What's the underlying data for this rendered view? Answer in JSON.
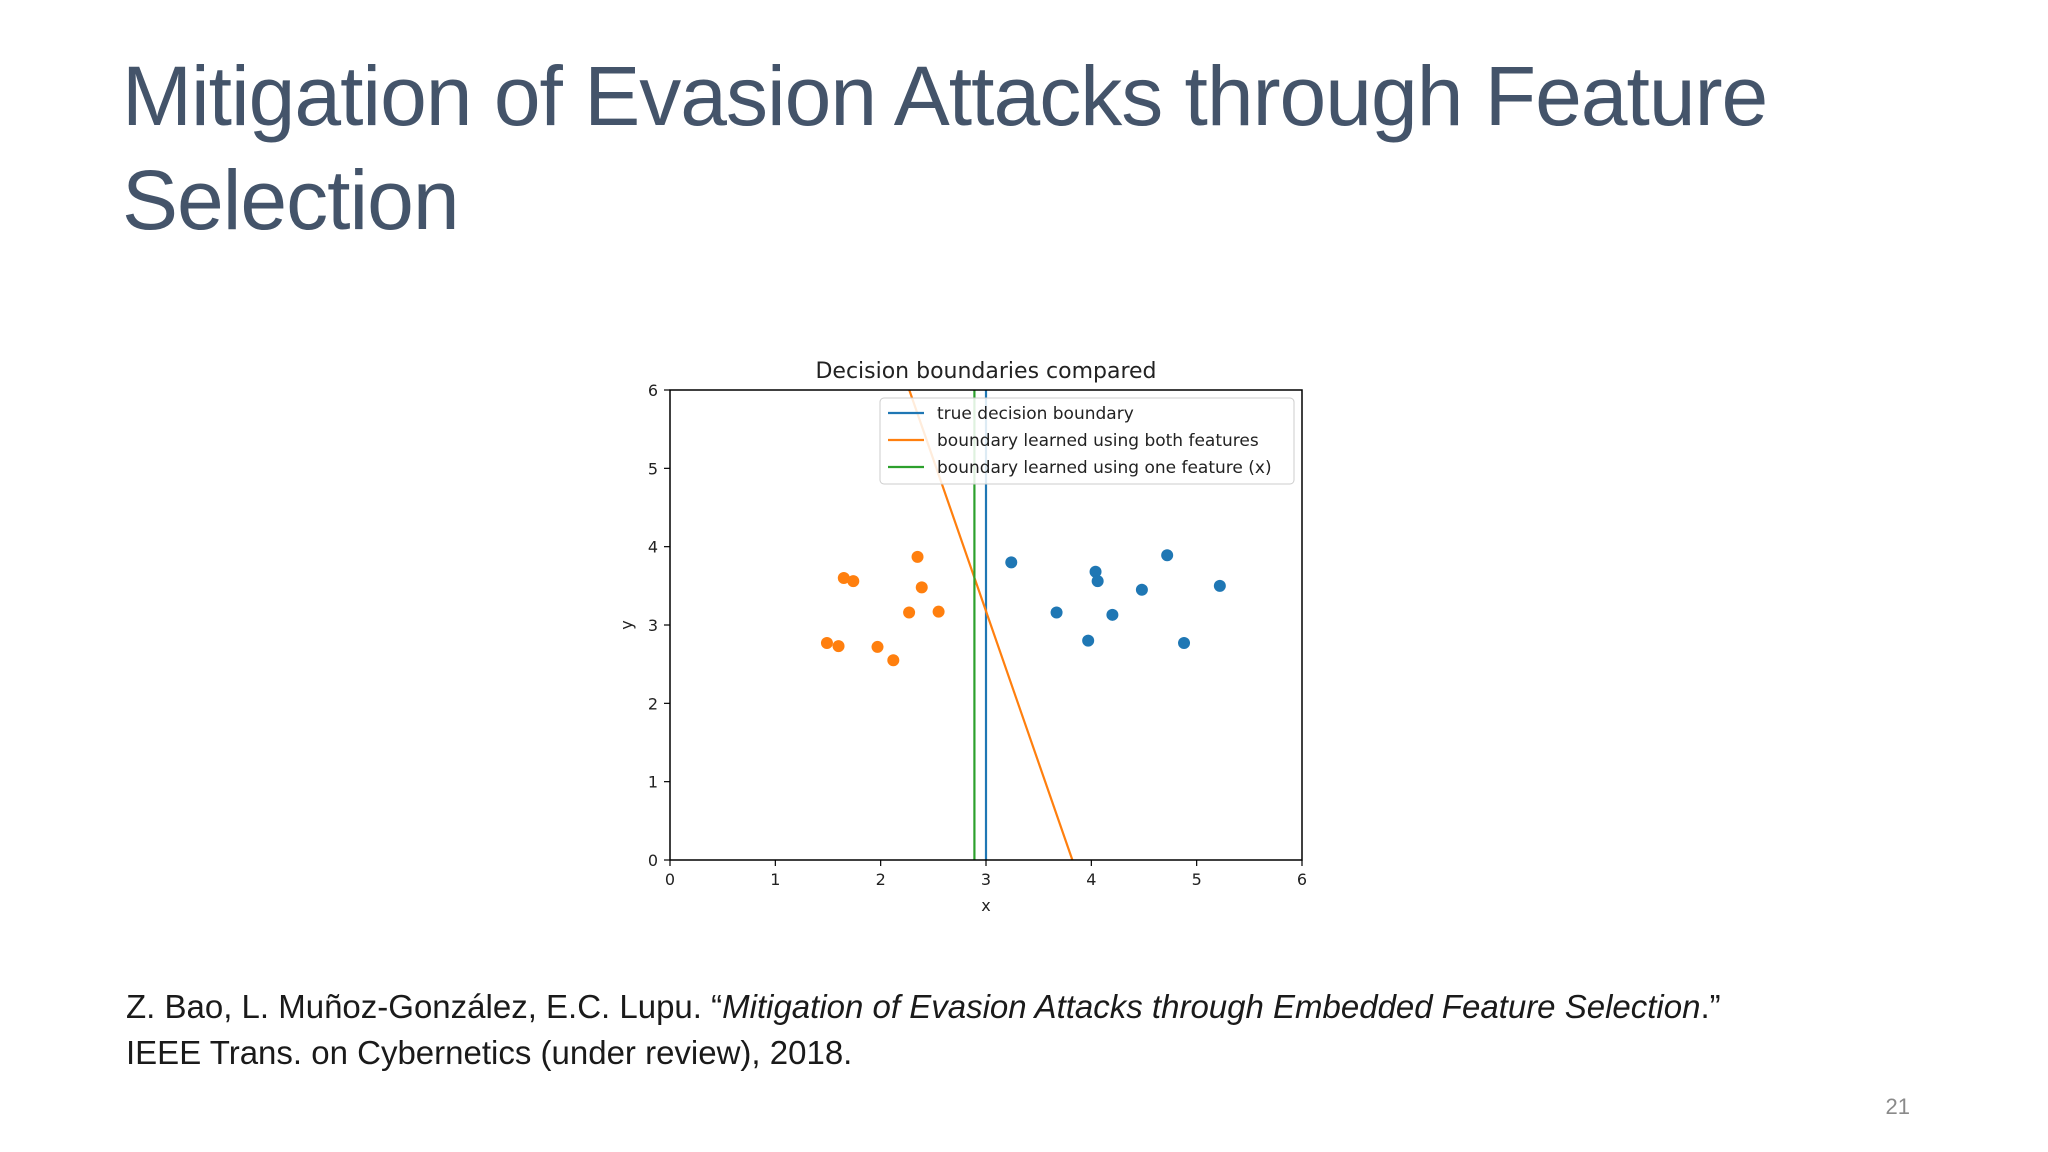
{
  "slide": {
    "title_line1": "Mitigation of Evasion Attacks through Feature",
    "title_line2": "Selection",
    "citation": {
      "authors": "Z. Bao, L. Muñoz-González, E.C. Lupu. “",
      "paper_title": "Mitigation of Evasion Attacks through Embedded Feature Selection",
      "title_end": ".”",
      "venue": "IEEE Trans. on Cybernetics (under review), 2018."
    },
    "page_number": "21"
  },
  "chart_data": {
    "type": "scatter",
    "title": "Decision boundaries compared",
    "xlabel": "x",
    "ylabel": "y",
    "xlim": [
      0,
      6
    ],
    "ylim": [
      0,
      6
    ],
    "xticks": [
      "0",
      "1",
      "2",
      "3",
      "4",
      "5",
      "6"
    ],
    "yticks": [
      "0",
      "1",
      "2",
      "3",
      "4",
      "5",
      "6"
    ],
    "grid": false,
    "legend_position": "top-right",
    "colors": {
      "blue": "#1f77b4",
      "orange": "#ff7f0e",
      "green": "#2ca02c"
    },
    "scatter_series": [
      {
        "color": "#ff7f0e",
        "points": [
          [
            1.49,
            2.77
          ],
          [
            1.6,
            2.73
          ],
          [
            1.65,
            3.6
          ],
          [
            1.74,
            3.56
          ],
          [
            1.97,
            2.72
          ],
          [
            2.12,
            2.55
          ],
          [
            2.27,
            3.16
          ],
          [
            2.35,
            3.87
          ],
          [
            2.39,
            3.48
          ],
          [
            2.55,
            3.17
          ]
        ]
      },
      {
        "color": "#1f77b4",
        "points": [
          [
            3.24,
            3.8
          ],
          [
            3.67,
            3.16
          ],
          [
            3.97,
            2.8
          ],
          [
            4.04,
            3.68
          ],
          [
            4.06,
            3.56
          ],
          [
            4.2,
            3.13
          ],
          [
            4.48,
            3.45
          ],
          [
            4.72,
            3.89
          ],
          [
            4.88,
            2.77
          ],
          [
            5.22,
            3.5
          ]
        ]
      }
    ],
    "lines": [
      {
        "name": "true decision boundary",
        "color": "#1f77b4",
        "points": [
          [
            3.0,
            0
          ],
          [
            3.0,
            6
          ]
        ]
      },
      {
        "name": "boundary learned using both features",
        "color": "#ff7f0e",
        "points": [
          [
            2.22,
            6.2
          ],
          [
            3.82,
            0
          ]
        ]
      },
      {
        "name": "boundary learned using one feature (x)",
        "color": "#2ca02c",
        "points": [
          [
            2.89,
            0
          ],
          [
            2.89,
            6
          ]
        ]
      }
    ]
  }
}
